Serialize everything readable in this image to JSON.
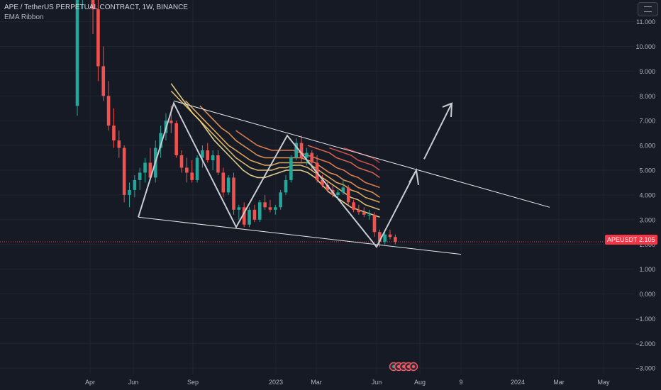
{
  "header": {
    "title": "APE / TetherUS PERPETUAL CONTRACT, 1W, BINANCE",
    "indicator": "EMA Ribbon"
  },
  "price_label": {
    "symbol": "APEUSDT.P",
    "price": "2.105"
  },
  "colors": {
    "background": "#161a25",
    "grid": "#1f2431",
    "up": "#26a69a",
    "down": "#ef5350",
    "last_price_line": "#f23645",
    "pattern": "#c9ccd3",
    "ribbon": [
      "#ffeb99",
      "#ffd47a",
      "#ffbd66",
      "#ffa35c",
      "#ff8a57",
      "#f76f52",
      "#e8574e",
      "#d64449"
    ]
  },
  "chart_data": {
    "type": "candlestick",
    "title": "APE / TetherUS PERPETUAL CONTRACT, 1W, BINANCE",
    "timeframe": "1W",
    "ylim": [
      -3.4,
      11.8
    ],
    "y_ticks": [
      "11.000",
      "10.000",
      "9.000",
      "8.000",
      "7.000",
      "6.000",
      "5.000",
      "4.000",
      "3.000",
      "2.000",
      "1.000",
      "0.000",
      "−1.000",
      "−2.000",
      "−3.000"
    ],
    "y_tick_values": [
      11,
      10,
      9,
      8,
      7,
      6,
      5,
      4,
      3,
      2,
      1,
      0,
      -1,
      -2,
      -3
    ],
    "x_ticks": [
      "Apr",
      "Jun",
      "Sep",
      "2023",
      "Mar",
      "Jun",
      "Aug",
      "9",
      "2024",
      "Mar",
      "May"
    ],
    "last_price": 2.105,
    "candles_ohlc": [
      [
        7.6,
        13.5,
        7.2,
        12.5
      ],
      [
        12.5,
        16,
        11.5,
        14.5
      ],
      [
        14.5,
        16,
        13,
        13.8
      ],
      [
        13.8,
        15,
        10.5,
        11.5
      ],
      [
        11.5,
        12,
        8.6,
        9.2
      ],
      [
        9.2,
        10,
        7.8,
        8.0
      ],
      [
        8.0,
        8.6,
        6.6,
        6.8
      ],
      [
        6.8,
        7.5,
        5.9,
        6.2
      ],
      [
        6.2,
        6.6,
        5.5,
        5.9
      ],
      [
        5.9,
        6.0,
        3.7,
        4.0
      ],
      [
        4.0,
        4.5,
        3.5,
        4.2
      ],
      [
        4.2,
        4.8,
        3.9,
        4.6
      ],
      [
        4.6,
        5.1,
        4.2,
        4.9
      ],
      [
        4.9,
        5.5,
        4.5,
        5.3
      ],
      [
        5.3,
        5.9,
        5.0,
        4.7
      ],
      [
        4.7,
        6.2,
        4.5,
        5.9
      ],
      [
        5.9,
        6.8,
        5.5,
        6.5
      ],
      [
        6.5,
        7.3,
        6.2,
        7.0
      ],
      [
        7.0,
        7.6,
        6.5,
        6.9
      ],
      [
        6.9,
        7.0,
        5.5,
        5.6
      ],
      [
        5.6,
        5.8,
        4.9,
        5.1
      ],
      [
        5.1,
        5.5,
        4.5,
        4.9
      ],
      [
        4.9,
        5.4,
        4.5,
        4.6
      ],
      [
        4.6,
        5.6,
        4.5,
        5.5
      ],
      [
        5.5,
        6.0,
        5.1,
        5.8
      ],
      [
        5.8,
        6.1,
        5.3,
        5.4
      ],
      [
        5.4,
        5.8,
        5.0,
        5.6
      ],
      [
        5.6,
        5.8,
        4.8,
        4.9
      ],
      [
        4.9,
        5.1,
        3.9,
        4.1
      ],
      [
        4.1,
        4.8,
        4.0,
        4.7
      ],
      [
        4.7,
        4.9,
        3.2,
        3.4
      ],
      [
        3.4,
        3.6,
        3.0,
        3.5
      ],
      [
        3.5,
        3.7,
        2.7,
        2.8
      ],
      [
        2.8,
        3.5,
        2.7,
        3.4
      ],
      [
        3.4,
        3.6,
        2.9,
        3.0
      ],
      [
        3.0,
        3.8,
        2.9,
        3.7
      ],
      [
        3.7,
        4.0,
        3.4,
        3.5
      ],
      [
        3.5,
        3.8,
        3.3,
        3.4
      ],
      [
        3.4,
        3.6,
        3.2,
        3.5
      ],
      [
        3.5,
        4.2,
        3.4,
        4.1
      ],
      [
        4.1,
        4.8,
        4.0,
        4.6
      ],
      [
        4.6,
        5.6,
        4.5,
        5.5
      ],
      [
        5.5,
        6.3,
        5.4,
        6.1
      ],
      [
        6.1,
        6.4,
        5.3,
        5.5
      ],
      [
        5.5,
        5.9,
        5.2,
        5.7
      ],
      [
        5.7,
        5.8,
        5.0,
        5.3
      ],
      [
        5.3,
        5.6,
        4.5,
        4.6
      ],
      [
        4.6,
        4.8,
        4.3,
        4.4
      ],
      [
        4.4,
        4.6,
        4.1,
        4.2
      ],
      [
        4.2,
        4.4,
        3.9,
        4.0
      ],
      [
        4.0,
        4.2,
        3.8,
        4.1
      ],
      [
        4.1,
        4.6,
        4.0,
        4.3
      ],
      [
        4.3,
        4.4,
        3.6,
        3.7
      ],
      [
        3.7,
        3.8,
        3.3,
        3.4
      ],
      [
        3.4,
        3.6,
        3.2,
        3.3
      ],
      [
        3.3,
        3.5,
        3.1,
        3.2
      ],
      [
        3.2,
        3.4,
        3.0,
        3.2
      ],
      [
        3.2,
        3.3,
        2.3,
        2.5
      ],
      [
        2.5,
        2.6,
        1.9,
        2.1
      ],
      [
        2.1,
        2.5,
        2.0,
        2.4
      ],
      [
        2.4,
        2.6,
        2.2,
        2.3
      ],
      [
        2.3,
        2.4,
        2.0,
        2.1
      ]
    ],
    "ema_ribbon_weekly": [
      [
        8.5,
        8.1,
        7.7,
        7.3,
        7.0,
        6.6,
        6.2,
        5.9,
        5.6,
        5.3,
        5.0,
        4.8,
        4.7,
        4.7,
        4.8,
        4.9,
        5.0,
        5.0,
        5.0,
        4.9,
        4.7,
        4.4,
        4.1,
        3.9,
        3.7,
        3.5,
        3.4,
        3.3,
        3.2,
        3.1
      ],
      [
        8.2,
        7.9,
        7.6,
        7.3,
        7.0,
        6.7,
        6.4,
        6.1,
        5.8,
        5.5,
        5.3,
        5.1,
        5.0,
        5.0,
        5.0,
        5.1,
        5.1,
        5.2,
        5.2,
        5.1,
        4.9,
        4.7,
        4.5,
        4.3,
        4.1,
        3.9,
        3.8,
        3.6,
        3.5,
        3.4
      ],
      [
        null,
        null,
        7.8,
        7.5,
        7.2,
        6.9,
        6.6,
        6.3,
        6.0,
        5.8,
        5.6,
        5.4,
        5.3,
        5.2,
        5.2,
        5.3,
        5.3,
        5.3,
        5.3,
        5.3,
        5.1,
        4.9,
        4.7,
        4.5,
        4.4,
        4.2,
        4.1,
        3.9,
        3.8,
        3.7
      ],
      [
        null,
        null,
        null,
        null,
        7.6,
        7.3,
        7.0,
        6.7,
        6.5,
        6.2,
        6.0,
        5.8,
        5.6,
        5.5,
        5.5,
        5.5,
        5.5,
        5.5,
        5.5,
        5.4,
        5.3,
        5.1,
        4.9,
        4.8,
        4.6,
        4.5,
        4.3,
        4.2,
        4.1,
        3.9
      ],
      [
        null,
        null,
        null,
        null,
        null,
        null,
        null,
        null,
        null,
        6.6,
        6.4,
        6.2,
        6.0,
        5.9,
        5.8,
        5.8,
        5.8,
        5.8,
        5.7,
        5.6,
        5.5,
        5.4,
        5.3,
        5.1,
        5.0,
        4.8,
        4.7,
        4.5,
        4.4,
        4.3
      ],
      [
        null,
        null,
        null,
        null,
        null,
        null,
        null,
        null,
        null,
        null,
        null,
        null,
        null,
        null,
        null,
        null,
        null,
        null,
        null,
        6.0,
        5.9,
        5.8,
        5.7,
        5.5,
        5.4,
        5.3,
        5.1,
        5.0,
        4.9,
        4.7
      ],
      [
        null,
        null,
        null,
        null,
        null,
        null,
        null,
        null,
        null,
        null,
        null,
        null,
        null,
        null,
        null,
        null,
        null,
        null,
        null,
        null,
        null,
        null,
        5.9,
        5.8,
        5.7,
        5.6,
        5.4,
        5.3,
        5.2,
        5.0
      ],
      [
        null,
        null,
        null,
        null,
        null,
        null,
        null,
        null,
        null,
        null,
        null,
        null,
        null,
        null,
        null,
        null,
        null,
        null,
        null,
        null,
        null,
        null,
        null,
        null,
        5.9,
        5.8,
        5.7,
        5.6,
        5.5,
        5.3
      ]
    ],
    "annotations": {
      "channel_upper": [
        [
          7.8,
          5.1,
          3.5
        ]
      ],
      "channel_lower": [
        [
          3.1,
          1.6
        ]
      ],
      "zigzag": [
        3.1,
        7.7,
        2.7,
        6.4,
        1.9,
        5.0
      ],
      "arrow_target": 7.7
    }
  }
}
